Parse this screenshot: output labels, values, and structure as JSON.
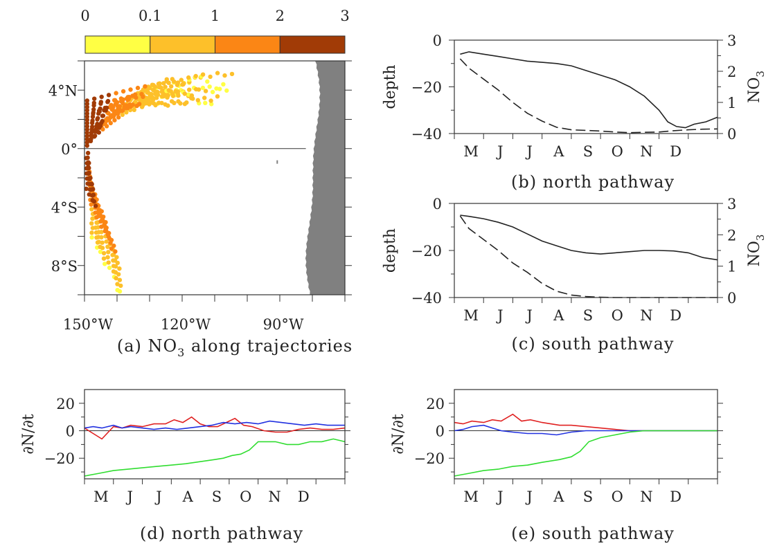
{
  "chart_data": [
    {
      "id": "a",
      "type": "scatter",
      "caption": "(a) NO",
      "caption_sub": "3",
      "caption_rest": " along trajectories",
      "colorbar": {
        "tick_labels": [
          "0",
          "0.1",
          "1",
          "2",
          "3"
        ],
        "bounds": [
          0,
          0.1,
          1,
          2,
          3
        ],
        "colors": [
          "#ffff44",
          "#fdc02a",
          "#fb8615",
          "#a13b06"
        ]
      },
      "x_ticks": [
        {
          "value": -150,
          "label": "150°W"
        },
        {
          "value": -120,
          "label": "120°W"
        },
        {
          "value": -90,
          "label": "90°W"
        }
      ],
      "y_ticks": [
        {
          "value": 4,
          "label": "4°N"
        },
        {
          "value": 0,
          "label": "0°"
        },
        {
          "value": -4,
          "label": "4°S"
        },
        {
          "value": -8,
          "label": "8°S"
        }
      ],
      "xlim": [
        -150,
        -70
      ],
      "ylim": [
        -10,
        6
      ],
      "land_color": "#808080",
      "trajectories": [
        {
          "name": "north",
          "start": [
            -150,
            2.6
          ],
          "end": [
            -108,
            4.2
          ],
          "peak": 5.2,
          "count": 15
        },
        {
          "name": "south",
          "start": [
            -150,
            -1.2
          ],
          "end": [
            -145,
            -9.0
          ],
          "count": 8
        }
      ]
    },
    {
      "id": "b",
      "type": "line",
      "caption": "(b) north pathway",
      "ylabel_left": "depth",
      "ylabel_right": "NO",
      "ylabel_right_sub": "3",
      "months": [
        "M",
        "J",
        "J",
        "A",
        "S",
        "O",
        "N",
        "D"
      ],
      "xlim": [
        0,
        9
      ],
      "ylim_left": [
        -40,
        0
      ],
      "ylim_right": [
        0,
        3
      ],
      "left_ticks": [
        0,
        -20,
        -40
      ],
      "right_ticks": [
        0,
        1,
        2,
        3
      ],
      "series": [
        {
          "style": "solid",
          "axis": "left",
          "x": [
            0.2,
            0.5,
            1,
            1.5,
            2,
            2.5,
            3,
            3.5,
            4,
            4.5,
            5,
            5.5,
            6,
            6.5,
            7,
            7.3,
            7.6,
            7.9,
            8.2,
            8.6,
            9
          ],
          "values": [
            -6,
            -5,
            -6,
            -7,
            -8,
            -9,
            -9.5,
            -10,
            -11,
            -13,
            -15,
            -17,
            -20,
            -24,
            -30,
            -35,
            -37,
            -37.5,
            -36,
            -35,
            -33
          ]
        },
        {
          "style": "dashed",
          "axis": "right",
          "x": [
            0.2,
            0.5,
            1,
            1.5,
            2,
            2.5,
            3,
            3.5,
            4,
            4.5,
            5,
            5.5,
            6,
            6.5,
            7,
            7.5,
            8,
            8.5,
            9
          ],
          "values": [
            2.4,
            2.1,
            1.75,
            1.4,
            1.0,
            0.65,
            0.4,
            0.2,
            0.12,
            0.1,
            0.08,
            0.05,
            0.03,
            0.04,
            0.05,
            0.09,
            0.12,
            0.14,
            0.15
          ]
        }
      ]
    },
    {
      "id": "c",
      "type": "line",
      "caption": "(c) south pathway",
      "ylabel_left": "depth",
      "ylabel_right": "NO",
      "ylabel_right_sub": "3",
      "months": [
        "M",
        "J",
        "J",
        "A",
        "S",
        "O",
        "N",
        "D"
      ],
      "xlim": [
        0,
        9
      ],
      "ylim_left": [
        -40,
        0
      ],
      "ylim_right": [
        0,
        3
      ],
      "left_ticks": [
        0,
        -20,
        -40
      ],
      "right_ticks": [
        0,
        1,
        2,
        3
      ],
      "series": [
        {
          "style": "solid",
          "axis": "left",
          "x": [
            0.2,
            0.5,
            1,
            1.5,
            2,
            2.5,
            3,
            3.5,
            4,
            4.5,
            5,
            5.5,
            6,
            6.5,
            7,
            7.5,
            8,
            8.5,
            9
          ],
          "values": [
            -5,
            -5.5,
            -6.5,
            -8,
            -10,
            -13,
            -16,
            -18,
            -20,
            -21,
            -21.5,
            -21,
            -20.5,
            -20,
            -20,
            -20.2,
            -21,
            -23,
            -24
          ]
        },
        {
          "style": "dashed",
          "axis": "right",
          "x": [
            0.2,
            0.5,
            1,
            1.5,
            2,
            2.5,
            3,
            3.5,
            4,
            4.5,
            5,
            5.5,
            6,
            6.5,
            7,
            7.5,
            8,
            8.5,
            9
          ],
          "values": [
            2.6,
            2.2,
            1.85,
            1.5,
            1.1,
            0.8,
            0.45,
            0.2,
            0.08,
            0.03,
            0.01,
            0,
            0,
            0,
            0,
            0,
            0,
            0,
            0
          ]
        }
      ]
    },
    {
      "id": "d",
      "type": "line",
      "caption": "(d) north pathway",
      "ylabel": "∂N/∂t",
      "months": [
        "M",
        "J",
        "J",
        "A",
        "S",
        "O",
        "N",
        "D"
      ],
      "xlim": [
        0,
        9
      ],
      "ylim": [
        -35,
        30
      ],
      "y_ticks": [
        20,
        0,
        -20
      ],
      "zero_line": true,
      "series": [
        {
          "color": "#e02020",
          "x": [
            0,
            0.3,
            0.6,
            1,
            1.3,
            1.6,
            2,
            2.4,
            2.8,
            3.1,
            3.4,
            3.7,
            4,
            4.3,
            4.6,
            4.9,
            5.2,
            5.5,
            5.8,
            6.2,
            6.6,
            7,
            7.4,
            7.8,
            8.2,
            8.6,
            9
          ],
          "values": [
            2,
            -2,
            -6,
            3,
            2,
            4,
            3,
            5,
            5,
            8,
            6,
            10,
            5,
            3,
            3,
            6,
            9,
            4,
            3,
            0,
            -1,
            -1,
            1,
            2,
            1,
            1,
            2
          ]
        },
        {
          "color": "#2030e0",
          "x": [
            0,
            0.3,
            0.6,
            1,
            1.3,
            1.6,
            2,
            2.4,
            2.8,
            3.2,
            3.6,
            4,
            4.4,
            4.8,
            5.2,
            5.6,
            6,
            6.4,
            6.8,
            7.2,
            7.6,
            8,
            8.4,
            9
          ],
          "values": [
            2,
            3,
            2,
            4,
            2,
            3,
            2,
            1,
            2,
            1,
            2,
            3,
            4,
            6,
            5,
            6,
            5,
            7,
            6,
            5,
            4,
            5,
            4,
            4
          ]
        },
        {
          "color": "#30dd30",
          "x": [
            0,
            0.5,
            1,
            1.5,
            2,
            2.5,
            3,
            3.5,
            4,
            4.5,
            4.8,
            5.1,
            5.4,
            5.7,
            6,
            6.3,
            6.6,
            7,
            7.4,
            7.8,
            8.2,
            8.6,
            9
          ],
          "values": [
            -33,
            -31,
            -29,
            -28,
            -27,
            -26,
            -25,
            -24,
            -22.5,
            -21,
            -20,
            -18,
            -17,
            -14,
            -8,
            -8,
            -8,
            -10,
            -10,
            -8,
            -8,
            -6,
            -8
          ]
        }
      ]
    },
    {
      "id": "e",
      "type": "line",
      "caption": "(e) south pathway",
      "ylabel": "∂N/∂t",
      "months": [
        "M",
        "J",
        "J",
        "A",
        "S",
        "O",
        "N",
        "D"
      ],
      "xlim": [
        0,
        9
      ],
      "ylim": [
        -35,
        30
      ],
      "y_ticks": [
        20,
        0,
        -20
      ],
      "zero_line": true,
      "series": [
        {
          "color": "#e02020",
          "x": [
            0,
            0.3,
            0.6,
            1,
            1.3,
            1.6,
            2,
            2.3,
            2.6,
            3,
            3.3,
            3.6,
            4,
            4.5,
            5,
            5.5,
            6,
            6.5,
            7,
            9
          ],
          "values": [
            6,
            5,
            7,
            6,
            8,
            7,
            12,
            7,
            8,
            6,
            5,
            4,
            4,
            3,
            2,
            1,
            0,
            0,
            0,
            0
          ]
        },
        {
          "color": "#2030e0",
          "x": [
            0,
            0.3,
            0.6,
            1,
            1.3,
            1.6,
            2,
            2.5,
            3,
            3.5,
            4,
            4.5,
            5,
            5.5,
            6,
            6.5,
            7,
            9
          ],
          "values": [
            0,
            1,
            3,
            4,
            2,
            0,
            -1,
            -2,
            -2,
            -3,
            -1,
            0,
            0,
            0,
            0,
            0,
            0,
            0
          ]
        },
        {
          "color": "#30dd30",
          "x": [
            0,
            0.5,
            1,
            1.5,
            2,
            2.5,
            3,
            3.3,
            3.6,
            4,
            4.3,
            4.6,
            5,
            5.5,
            6,
            6.5,
            7,
            9
          ],
          "values": [
            -33,
            -31,
            -29,
            -28,
            -26,
            -25,
            -23,
            -22,
            -21,
            -19,
            -15,
            -8,
            -5,
            -3,
            -1,
            0,
            0,
            0
          ]
        }
      ]
    }
  ]
}
